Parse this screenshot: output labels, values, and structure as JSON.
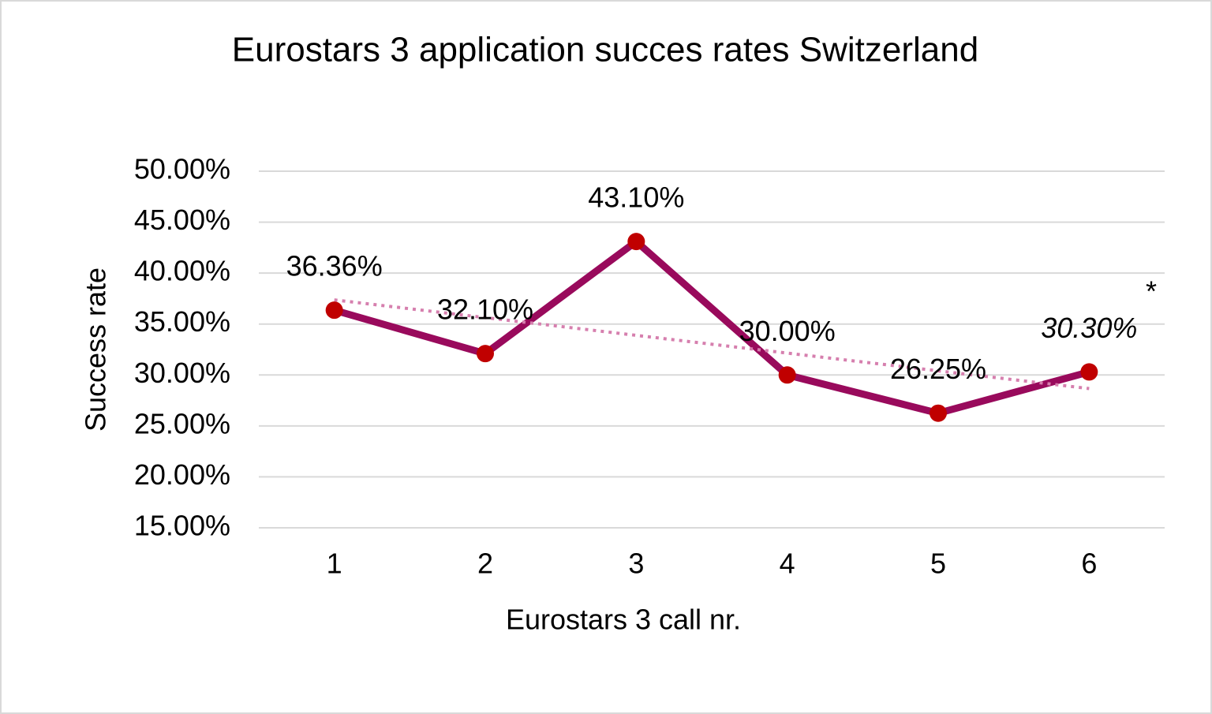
{
  "chart_data": {
    "type": "line",
    "title": "Eurostars 3 application succes rates Switzerland",
    "x_label": "Eurostars 3 call nr.",
    "y_label": "Success rate",
    "categories": [
      "1",
      "2",
      "3",
      "4",
      "5",
      "6"
    ],
    "values": [
      36.36,
      32.1,
      43.1,
      30.0,
      26.25,
      30.3
    ],
    "value_labels": [
      "36.36%",
      "32.10%",
      "43.10%",
      "30.00%",
      "26.25%",
      "30.30%"
    ],
    "value_label_styles": [
      "normal",
      "normal",
      "normal",
      "normal",
      "normal",
      "italic"
    ],
    "color": "#990a5c",
    "marker_color": "#c00000",
    "trendline": {
      "type": "linear",
      "color": "#d67fae",
      "style": "dotted"
    },
    "annotation": "*",
    "ylim": [
      15,
      50
    ],
    "yticks": [
      {
        "value": 15,
        "label": "15.00%"
      },
      {
        "value": 20,
        "label": "20.00%"
      },
      {
        "value": 25,
        "label": "25.00%"
      },
      {
        "value": 30,
        "label": "30.00%"
      },
      {
        "value": 35,
        "label": "35.00%"
      },
      {
        "value": 40,
        "label": "40.00%"
      },
      {
        "value": 45,
        "label": "45.00%"
      },
      {
        "value": 50,
        "label": "50.00%"
      }
    ],
    "grid": true
  }
}
